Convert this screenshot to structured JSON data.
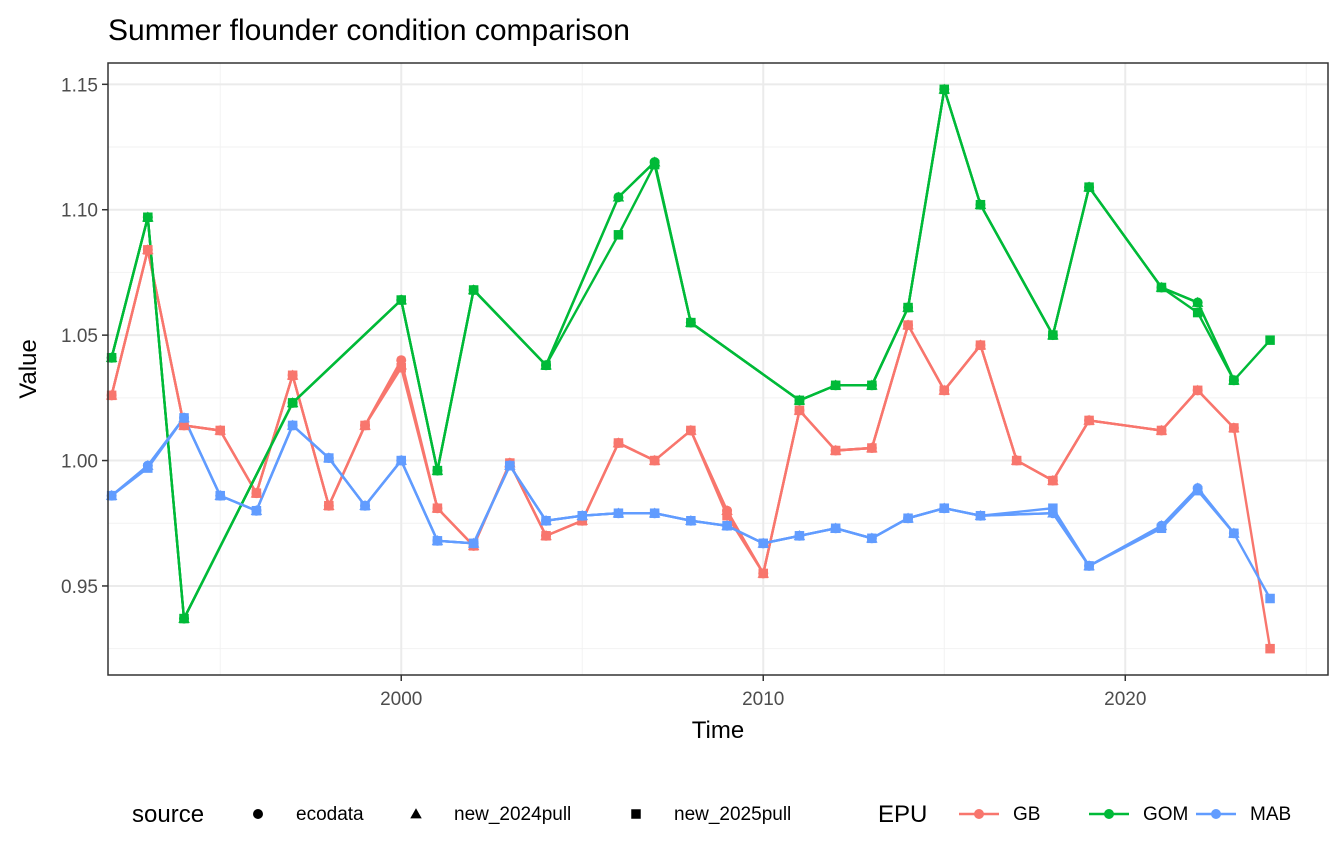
{
  "chart_data": {
    "type": "line",
    "title": "Summer flounder condition comparison",
    "xlabel": "Time",
    "ylabel": "Value",
    "xlim": [
      1991.9,
      2025.6
    ],
    "ylim": [
      0.9145,
      1.1585
    ],
    "x_ticks": [
      2000,
      2010,
      2020
    ],
    "x_tick_labels": [
      "2000",
      "2010",
      "2020"
    ],
    "y_ticks": [
      0.95,
      1.0,
      1.05,
      1.1,
      1.15
    ],
    "y_tick_labels": [
      "0.95",
      "1.00",
      "1.05",
      "1.10",
      "1.15"
    ],
    "grid": true,
    "legend_position": "bottom",
    "legends": {
      "source": {
        "title": "source",
        "items": [
          {
            "label": "ecodata",
            "shape": "circle"
          },
          {
            "label": "new_2024pull",
            "shape": "triangle"
          },
          {
            "label": "new_2025pull",
            "shape": "square"
          }
        ]
      },
      "epu": {
        "title": "EPU",
        "items": [
          {
            "label": "GB",
            "color": "#F8766D"
          },
          {
            "label": "GOM",
            "color": "#00BA38"
          },
          {
            "label": "MAB",
            "color": "#619CFF"
          }
        ]
      }
    },
    "series": [
      {
        "epu": "GB",
        "source": "ecodata",
        "color": "#F8766D",
        "shape": "circle",
        "points": [
          [
            1992,
            1.026
          ],
          [
            1993,
            1.084
          ],
          [
            1994,
            1.014
          ],
          [
            1995,
            1.012
          ],
          [
            1996,
            0.987
          ],
          [
            1997,
            1.034
          ],
          [
            1998,
            0.982
          ],
          [
            1999,
            1.014
          ],
          [
            2000,
            1.04
          ],
          [
            2001,
            0.981
          ],
          [
            2002,
            0.966
          ],
          [
            2003,
            0.999
          ],
          [
            2004,
            0.97
          ],
          [
            2005,
            0.976
          ],
          [
            2006,
            1.007
          ],
          [
            2007,
            1.0
          ],
          [
            2008,
            1.012
          ],
          [
            2009,
            0.98
          ],
          [
            2010,
            0.955
          ],
          [
            2011,
            1.02
          ],
          [
            2012,
            1.004
          ],
          [
            2013,
            1.005
          ],
          [
            2014,
            1.054
          ],
          [
            2015,
            1.028
          ],
          [
            2016,
            1.046
          ],
          [
            2017,
            1.0
          ],
          [
            2018,
            0.992
          ],
          [
            2019,
            1.016
          ],
          [
            2021,
            1.012
          ],
          [
            2022,
            1.028
          ],
          [
            2023,
            1.013
          ]
        ]
      },
      {
        "epu": "GB",
        "source": "new_2024pull",
        "color": "#F8766D",
        "shape": "triangle",
        "points": [
          [
            1992,
            1.026
          ],
          [
            1993,
            1.084
          ],
          [
            1994,
            1.014
          ],
          [
            1995,
            1.012
          ],
          [
            1996,
            0.987
          ],
          [
            1997,
            1.034
          ],
          [
            1998,
            0.982
          ],
          [
            1999,
            1.014
          ],
          [
            2000,
            1.038
          ],
          [
            2001,
            0.981
          ],
          [
            2002,
            0.966
          ],
          [
            2003,
            0.999
          ],
          [
            2004,
            0.97
          ],
          [
            2005,
            0.976
          ],
          [
            2006,
            1.007
          ],
          [
            2007,
            1.0
          ],
          [
            2008,
            1.012
          ],
          [
            2009,
            0.98
          ],
          [
            2010,
            0.955
          ],
          [
            2011,
            1.02
          ],
          [
            2012,
            1.004
          ],
          [
            2013,
            1.005
          ],
          [
            2014,
            1.054
          ],
          [
            2015,
            1.028
          ],
          [
            2016,
            1.046
          ],
          [
            2017,
            1.0
          ],
          [
            2018,
            0.992
          ],
          [
            2019,
            1.016
          ],
          [
            2021,
            1.012
          ],
          [
            2022,
            1.028
          ],
          [
            2023,
            1.013
          ]
        ]
      },
      {
        "epu": "GB",
        "source": "new_2025pull",
        "color": "#F8766D",
        "shape": "square",
        "points": [
          [
            1992,
            1.026
          ],
          [
            1993,
            1.084
          ],
          [
            1994,
            1.014
          ],
          [
            1995,
            1.012
          ],
          [
            1996,
            0.987
          ],
          [
            1997,
            1.034
          ],
          [
            1998,
            0.982
          ],
          [
            1999,
            1.014
          ],
          [
            2000,
            1.037
          ],
          [
            2001,
            0.981
          ],
          [
            2002,
            0.966
          ],
          [
            2003,
            0.999
          ],
          [
            2004,
            0.97
          ],
          [
            2005,
            0.976
          ],
          [
            2006,
            1.007
          ],
          [
            2007,
            1.0
          ],
          [
            2008,
            1.012
          ],
          [
            2009,
            0.978
          ],
          [
            2010,
            0.955
          ],
          [
            2011,
            1.02
          ],
          [
            2012,
            1.004
          ],
          [
            2013,
            1.005
          ],
          [
            2014,
            1.054
          ],
          [
            2015,
            1.028
          ],
          [
            2016,
            1.046
          ],
          [
            2017,
            1.0
          ],
          [
            2018,
            0.992
          ],
          [
            2019,
            1.016
          ],
          [
            2021,
            1.012
          ],
          [
            2022,
            1.028
          ],
          [
            2023,
            1.013
          ],
          [
            2024,
            0.925
          ]
        ]
      },
      {
        "epu": "GOM",
        "source": "ecodata",
        "color": "#00BA38",
        "shape": "circle",
        "points": [
          [
            1992,
            1.041
          ],
          [
            1993,
            1.097
          ],
          [
            1994,
            0.937
          ],
          [
            1997,
            1.023
          ],
          [
            2000,
            1.064
          ],
          [
            2001,
            0.996
          ],
          [
            2002,
            1.068
          ],
          [
            2004,
            1.038
          ],
          [
            2006,
            1.105
          ],
          [
            2007,
            1.119
          ],
          [
            2008,
            1.055
          ],
          [
            2011,
            1.024
          ],
          [
            2012,
            1.03
          ],
          [
            2013,
            1.03
          ],
          [
            2014,
            1.061
          ],
          [
            2015,
            1.148
          ],
          [
            2016,
            1.102
          ],
          [
            2018,
            1.05
          ],
          [
            2019,
            1.109
          ],
          [
            2021,
            1.069
          ],
          [
            2022,
            1.063
          ],
          [
            2023,
            1.032
          ]
        ]
      },
      {
        "epu": "GOM",
        "source": "new_2024pull",
        "color": "#00BA38",
        "shape": "triangle",
        "points": [
          [
            1992,
            1.041
          ],
          [
            1993,
            1.097
          ],
          [
            1994,
            0.937
          ],
          [
            1997,
            1.023
          ],
          [
            2000,
            1.064
          ],
          [
            2001,
            0.996
          ],
          [
            2002,
            1.068
          ],
          [
            2004,
            1.038
          ],
          [
            2006,
            1.105
          ],
          [
            2007,
            1.119
          ],
          [
            2008,
            1.055
          ],
          [
            2011,
            1.024
          ],
          [
            2012,
            1.03
          ],
          [
            2013,
            1.03
          ],
          [
            2014,
            1.061
          ],
          [
            2015,
            1.148
          ],
          [
            2016,
            1.102
          ],
          [
            2018,
            1.05
          ],
          [
            2019,
            1.109
          ],
          [
            2021,
            1.069
          ],
          [
            2022,
            1.063
          ],
          [
            2023,
            1.032
          ]
        ]
      },
      {
        "epu": "GOM",
        "source": "new_2025pull",
        "color": "#00BA38",
        "shape": "square",
        "points": [
          [
            1992,
            1.041
          ],
          [
            1993,
            1.097
          ],
          [
            1994,
            0.937
          ],
          [
            1997,
            1.023
          ],
          [
            2000,
            1.064
          ],
          [
            2001,
            0.996
          ],
          [
            2002,
            1.068
          ],
          [
            2004,
            1.038
          ],
          [
            2006,
            1.09
          ],
          [
            2007,
            1.118
          ],
          [
            2008,
            1.055
          ],
          [
            2011,
            1.024
          ],
          [
            2012,
            1.03
          ],
          [
            2013,
            1.03
          ],
          [
            2014,
            1.061
          ],
          [
            2015,
            1.148
          ],
          [
            2016,
            1.102
          ],
          [
            2018,
            1.05
          ],
          [
            2019,
            1.109
          ],
          [
            2021,
            1.069
          ],
          [
            2022,
            1.059
          ],
          [
            2023,
            1.032
          ],
          [
            2024,
            1.048
          ]
        ]
      },
      {
        "epu": "MAB",
        "source": "ecodata",
        "color": "#619CFF",
        "shape": "circle",
        "points": [
          [
            1992,
            0.986
          ],
          [
            1993,
            0.998
          ],
          [
            1994,
            1.017
          ],
          [
            1995,
            0.986
          ],
          [
            1996,
            0.98
          ],
          [
            1997,
            1.014
          ],
          [
            1998,
            1.001
          ],
          [
            1999,
            0.982
          ],
          [
            2000,
            1.0
          ],
          [
            2001,
            0.968
          ],
          [
            2002,
            0.967
          ],
          [
            2003,
            0.998
          ],
          [
            2004,
            0.976
          ],
          [
            2005,
            0.978
          ],
          [
            2006,
            0.979
          ],
          [
            2007,
            0.979
          ],
          [
            2008,
            0.976
          ],
          [
            2009,
            0.974
          ],
          [
            2010,
            0.967
          ],
          [
            2011,
            0.97
          ],
          [
            2012,
            0.973
          ],
          [
            2013,
            0.969
          ],
          [
            2014,
            0.977
          ],
          [
            2015,
            0.981
          ],
          [
            2016,
            0.978
          ],
          [
            2018,
            0.979
          ],
          [
            2019,
            0.958
          ],
          [
            2021,
            0.974
          ],
          [
            2022,
            0.989
          ],
          [
            2023,
            0.971
          ]
        ]
      },
      {
        "epu": "MAB",
        "source": "new_2024pull",
        "color": "#619CFF",
        "shape": "triangle",
        "points": [
          [
            1992,
            0.986
          ],
          [
            1993,
            0.998
          ],
          [
            1994,
            1.017
          ],
          [
            1995,
            0.986
          ],
          [
            1996,
            0.98
          ],
          [
            1997,
            1.014
          ],
          [
            1998,
            1.001
          ],
          [
            1999,
            0.982
          ],
          [
            2000,
            1.0
          ],
          [
            2001,
            0.968
          ],
          [
            2002,
            0.967
          ],
          [
            2003,
            0.998
          ],
          [
            2004,
            0.976
          ],
          [
            2005,
            0.978
          ],
          [
            2006,
            0.979
          ],
          [
            2007,
            0.979
          ],
          [
            2008,
            0.976
          ],
          [
            2009,
            0.974
          ],
          [
            2010,
            0.967
          ],
          [
            2011,
            0.97
          ],
          [
            2012,
            0.973
          ],
          [
            2013,
            0.969
          ],
          [
            2014,
            0.977
          ],
          [
            2015,
            0.981
          ],
          [
            2016,
            0.978
          ],
          [
            2018,
            0.979
          ],
          [
            2019,
            0.958
          ],
          [
            2021,
            0.974
          ],
          [
            2022,
            0.989
          ],
          [
            2023,
            0.971
          ]
        ]
      },
      {
        "epu": "MAB",
        "source": "new_2025pull",
        "color": "#619CFF",
        "shape": "square",
        "points": [
          [
            1992,
            0.986
          ],
          [
            1993,
            0.997
          ],
          [
            1994,
            1.017
          ],
          [
            1995,
            0.986
          ],
          [
            1996,
            0.98
          ],
          [
            1997,
            1.014
          ],
          [
            1998,
            1.001
          ],
          [
            1999,
            0.982
          ],
          [
            2000,
            1.0
          ],
          [
            2001,
            0.968
          ],
          [
            2002,
            0.967
          ],
          [
            2003,
            0.998
          ],
          [
            2004,
            0.976
          ],
          [
            2005,
            0.978
          ],
          [
            2006,
            0.979
          ],
          [
            2007,
            0.979
          ],
          [
            2008,
            0.976
          ],
          [
            2009,
            0.974
          ],
          [
            2010,
            0.967
          ],
          [
            2011,
            0.97
          ],
          [
            2012,
            0.973
          ],
          [
            2013,
            0.969
          ],
          [
            2014,
            0.977
          ],
          [
            2015,
            0.981
          ],
          [
            2016,
            0.978
          ],
          [
            2018,
            0.981
          ],
          [
            2019,
            0.958
          ],
          [
            2021,
            0.973
          ],
          [
            2022,
            0.988
          ],
          [
            2023,
            0.971
          ],
          [
            2024,
            0.945
          ]
        ]
      }
    ]
  }
}
